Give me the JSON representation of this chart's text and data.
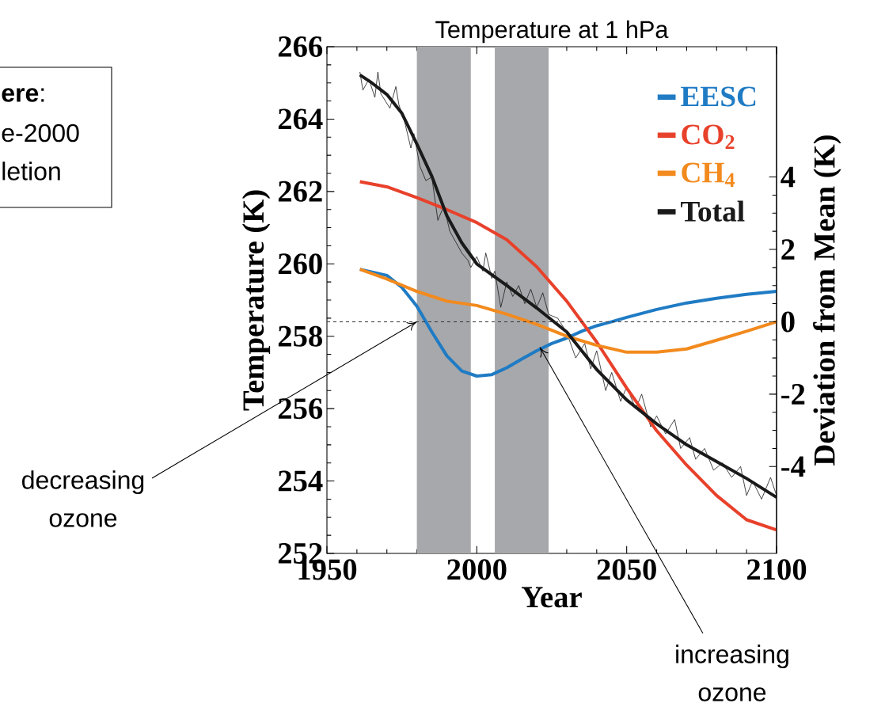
{
  "chart_data": {
    "type": "line",
    "title": "Temperature at 1 hPa",
    "xlabel": "Year",
    "ylabel": "Temperature (K)",
    "y2label": "Deviation from Mean (K)",
    "xlim": [
      1950,
      2100
    ],
    "xticks": [
      1950,
      2000,
      2050,
      2100
    ],
    "ylim": [
      252,
      266
    ],
    "yticks": [
      252,
      254,
      256,
      258,
      260,
      262,
      264,
      266
    ],
    "y2lim": [
      -6.4,
      7.6
    ],
    "y2ticks": [
      -4,
      -2,
      0,
      2,
      4
    ],
    "legend": "top right",
    "line_style": "solid",
    "bands": [
      {
        "axis": "x",
        "from": 1980,
        "to": 1998,
        "color": "#a7a8ab"
      },
      {
        "axis": "x",
        "from": 2006,
        "to": 2024,
        "color": "#a7a8ab"
      }
    ],
    "ref_lines": [
      {
        "axis": "y2",
        "value": 0,
        "color": "#333333",
        "line_style": "dashed"
      }
    ],
    "annotations": [
      "**ere**:",
      "e-2000",
      "letion",
      {
        "text": "decreasing\nozone",
        "x": 1980,
        "y": 258.4
      },
      {
        "text": "increasing\nozone",
        "x": 2021,
        "y": 257.7
      }
    ],
    "series": [
      {
        "color": "#1a1a1a",
        "x": [
          1961,
          1962,
          1964,
          1966,
          1967,
          1968,
          1971,
          1973,
          1974,
          1976,
          1978,
          1979,
          1981,
          1983,
          1985,
          1987,
          1989,
          1991,
          1993,
          1995,
          1997,
          1998,
          2000,
          2002,
          2003,
          2005,
          2006,
          2008,
          2010,
          2012,
          2014,
          2016,
          2018,
          2020,
          2022,
          2024,
          2027,
          2030,
          2033,
          2036,
          2038,
          2040,
          2043,
          2045,
          2048,
          2050,
          2053,
          2055,
          2058,
          2060,
          2063,
          2066,
          2068,
          2071,
          2073,
          2076,
          2079,
          2082,
          2085,
          2088,
          2090,
          2092,
          2095,
          2098,
          2100
        ],
        "values": [
          265.3,
          264.8,
          265.1,
          264.6,
          265.3,
          264.7,
          264.3,
          264.9,
          264.4,
          263.9,
          263.2,
          263.6,
          262.7,
          262.3,
          262.4,
          261.2,
          261.6,
          260.9,
          260.6,
          260.3,
          260.1,
          259.9,
          260.2,
          259.8,
          260.3,
          259.6,
          259.8,
          258.8,
          259.5,
          259.1,
          259.4,
          258.9,
          259.3,
          258.8,
          259.2,
          258.6,
          258.5,
          258.1,
          257.4,
          257.8,
          257.1,
          257.6,
          256.5,
          257.0,
          256.2,
          256.6,
          256.0,
          256.4,
          255.5,
          255.8,
          255.3,
          255.7,
          254.9,
          255.2,
          254.6,
          254.9,
          254.3,
          254.5,
          254.1,
          254.4,
          253.6,
          254.0,
          253.5,
          254.1,
          253.6
        ]
      },
      {
        "name": "EESC",
        "color": "#1f7bc4",
        "x": [
          1961,
          1970,
          1975,
          1980,
          1985,
          1990,
          1995,
          2000,
          2005,
          2010,
          2015,
          2020,
          2025,
          2030,
          2035,
          2040,
          2045,
          2050,
          2060,
          2070,
          2080,
          2090,
          2100
        ],
        "values": [
          259.85,
          259.68,
          259.35,
          258.83,
          258.12,
          257.46,
          257.04,
          256.9,
          256.94,
          257.13,
          257.37,
          257.6,
          257.8,
          257.95,
          258.14,
          258.29,
          258.4,
          258.52,
          258.74,
          258.92,
          259.05,
          259.16,
          259.24
        ]
      },
      {
        "name": "CO$_{2}$",
        "color": "#e8412b",
        "x": [
          1961,
          1970,
          1980,
          1990,
          2000,
          2010,
          2020,
          2030,
          2040,
          2050,
          2060,
          2070,
          2080,
          2090,
          2100
        ],
        "values": [
          262.27,
          262.13,
          261.83,
          261.5,
          261.14,
          260.67,
          259.92,
          258.97,
          257.84,
          256.57,
          255.39,
          254.44,
          253.6,
          252.93,
          252.65
        ]
      },
      {
        "name": "CH$_{4}$",
        "color": "#f28a1e",
        "x": [
          1961,
          1970,
          1980,
          1990,
          2000,
          2010,
          2020,
          2030,
          2040,
          2050,
          2060,
          2070,
          2080,
          2090,
          2100
        ],
        "values": [
          259.85,
          259.58,
          259.24,
          258.97,
          258.85,
          258.61,
          258.33,
          258.0,
          257.75,
          257.56,
          257.56,
          257.65,
          257.89,
          258.14,
          258.4
        ]
      },
      {
        "name": "Total",
        "color": "#1a1a1a",
        "x": [
          1961,
          1965,
          1970,
          1975,
          1980,
          1985,
          1990,
          1995,
          2000,
          2010,
          2020,
          2030,
          2040,
          2050,
          2060,
          2070,
          2080,
          2090,
          2100
        ],
        "values": [
          265.22,
          265.0,
          264.68,
          264.16,
          263.31,
          262.42,
          261.33,
          260.58,
          260.0,
          259.4,
          258.78,
          258.12,
          257.08,
          256.24,
          255.58,
          255.0,
          254.54,
          254.07,
          253.55
        ]
      }
    ]
  }
}
